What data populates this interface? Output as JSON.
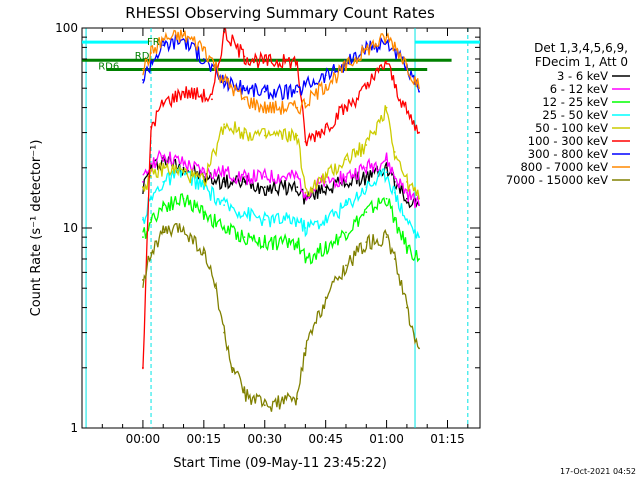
{
  "chart_data": {
    "type": "line",
    "title": "RHESSI Observing Summary Count Rates",
    "xlabel": "Start Time (09-May-11 23:45:22)",
    "ylabel": "Count Rate (s⁻¹ detector⁻¹)",
    "y_scale": "log",
    "ylim": [
      1,
      100
    ],
    "xlim_minutes": [
      -15,
      83
    ],
    "x_ticks": [
      {
        "value": 0,
        "label": "00:00"
      },
      {
        "value": 15,
        "label": "00:15"
      },
      {
        "value": 30,
        "label": "00:30"
      },
      {
        "value": 45,
        "label": "00:45"
      },
      {
        "value": 60,
        "label": "01:00"
      },
      {
        "value": 75,
        "label": "01:15"
      }
    ],
    "y_ticks": [
      {
        "value": 1,
        "label": "1"
      },
      {
        "value": 10,
        "label": "10"
      },
      {
        "value": 100,
        "label": "100"
      }
    ],
    "legend": {
      "placement": "right",
      "header": [
        "Det 1,3,4,5,6,9,",
        "FDecim 1, Att 0"
      ]
    },
    "series": [
      {
        "name": "3 - 6 keV",
        "color": "#000000",
        "x": [
          0,
          2,
          5,
          10,
          15,
          20,
          25,
          30,
          38,
          40,
          45,
          50,
          55,
          60,
          62,
          65,
          68
        ],
        "y": [
          16,
          20,
          22,
          20,
          18,
          17,
          17,
          16,
          16,
          14,
          16,
          17,
          18,
          20,
          17,
          14,
          13
        ]
      },
      {
        "name": "6 - 12 keV",
        "color": "#ff00ff",
        "x": [
          0,
          2,
          5,
          10,
          15,
          20,
          25,
          30,
          38,
          40,
          45,
          50,
          55,
          60,
          62,
          65,
          68
        ],
        "y": [
          17,
          21,
          23,
          21,
          19,
          19,
          18,
          18,
          18,
          15,
          17,
          18,
          20,
          22,
          18,
          15,
          13
        ]
      },
      {
        "name": "12 - 25 keV",
        "color": "#00ff00",
        "x": [
          0,
          2,
          5,
          10,
          15,
          20,
          25,
          30,
          38,
          40,
          45,
          50,
          55,
          60,
          62,
          65,
          68
        ],
        "y": [
          9,
          11,
          13,
          14,
          12,
          10,
          9,
          8.5,
          8.5,
          7,
          8,
          9.5,
          12,
          14,
          11,
          8,
          7
        ]
      },
      {
        "name": "25 - 50 keV",
        "color": "#00ffff",
        "x": [
          0,
          2,
          5,
          10,
          15,
          20,
          25,
          30,
          38,
          40,
          45,
          50,
          55,
          60,
          62,
          65,
          68
        ],
        "y": [
          11,
          14,
          17,
          19,
          16,
          13,
          12,
          11,
          11,
          10,
          11,
          13,
          16,
          19,
          15,
          11,
          9
        ]
      },
      {
        "name": "50 - 100 keV",
        "color": "#cccc00",
        "x": [
          0,
          2,
          5,
          10,
          15,
          20,
          25,
          30,
          38,
          40,
          45,
          50,
          55,
          60,
          62,
          65,
          68
        ],
        "y": [
          16,
          18,
          20,
          19,
          17,
          33,
          30,
          29,
          29,
          15,
          18,
          22,
          26,
          40,
          24,
          17,
          14
        ]
      },
      {
        "name": "100 - 300 keV",
        "color": "#ff0000",
        "x": [
          0,
          2,
          5,
          10,
          15,
          17,
          20,
          25,
          30,
          38,
          40,
          45,
          50,
          55,
          60,
          62,
          65,
          68
        ],
        "y": [
          2,
          32,
          42,
          48,
          46,
          44,
          95,
          72,
          68,
          68,
          27,
          32,
          40,
          50,
          68,
          52,
          38,
          30
        ]
      },
      {
        "name": "300 - 800 keV",
        "color": "#0000ff",
        "x": [
          0,
          2,
          5,
          10,
          15,
          20,
          25,
          30,
          38,
          40,
          45,
          50,
          55,
          60,
          62,
          65,
          68
        ],
        "y": [
          55,
          68,
          82,
          88,
          70,
          54,
          50,
          48,
          48,
          52,
          58,
          66,
          78,
          85,
          78,
          62,
          48
        ]
      },
      {
        "name": "800 - 7000 keV",
        "color": "#ff8800",
        "x": [
          0,
          2,
          5,
          10,
          15,
          20,
          25,
          30,
          38,
          40,
          45,
          50,
          55,
          60,
          62,
          65,
          68
        ],
        "y": [
          62,
          75,
          88,
          92,
          80,
          55,
          44,
          40,
          40,
          42,
          52,
          64,
          78,
          90,
          82,
          66,
          50
        ]
      },
      {
        "name": "7000 - 15000 keV",
        "color": "#808000",
        "x": [
          0,
          2,
          5,
          10,
          15,
          18,
          20,
          22,
          25,
          30,
          38,
          40,
          45,
          50,
          55,
          60,
          62,
          65,
          68
        ],
        "y": [
          5.5,
          7.5,
          9.5,
          10,
          7.5,
          5,
          3,
          2,
          1.5,
          1.3,
          1.4,
          2.5,
          4.5,
          6.5,
          8.5,
          9,
          7,
          4,
          2.5
        ]
      }
    ],
    "annotations": [
      {
        "text": "RD6",
        "x": -11,
        "y": 62,
        "color": "#008000"
      },
      {
        "text": "RD",
        "x": -2,
        "y": 70,
        "color": "#008000"
      },
      {
        "text": "FR",
        "x": 1,
        "y": 82,
        "color": "#008000"
      }
    ],
    "timestamp": "17-Oct-2021 04:52"
  }
}
